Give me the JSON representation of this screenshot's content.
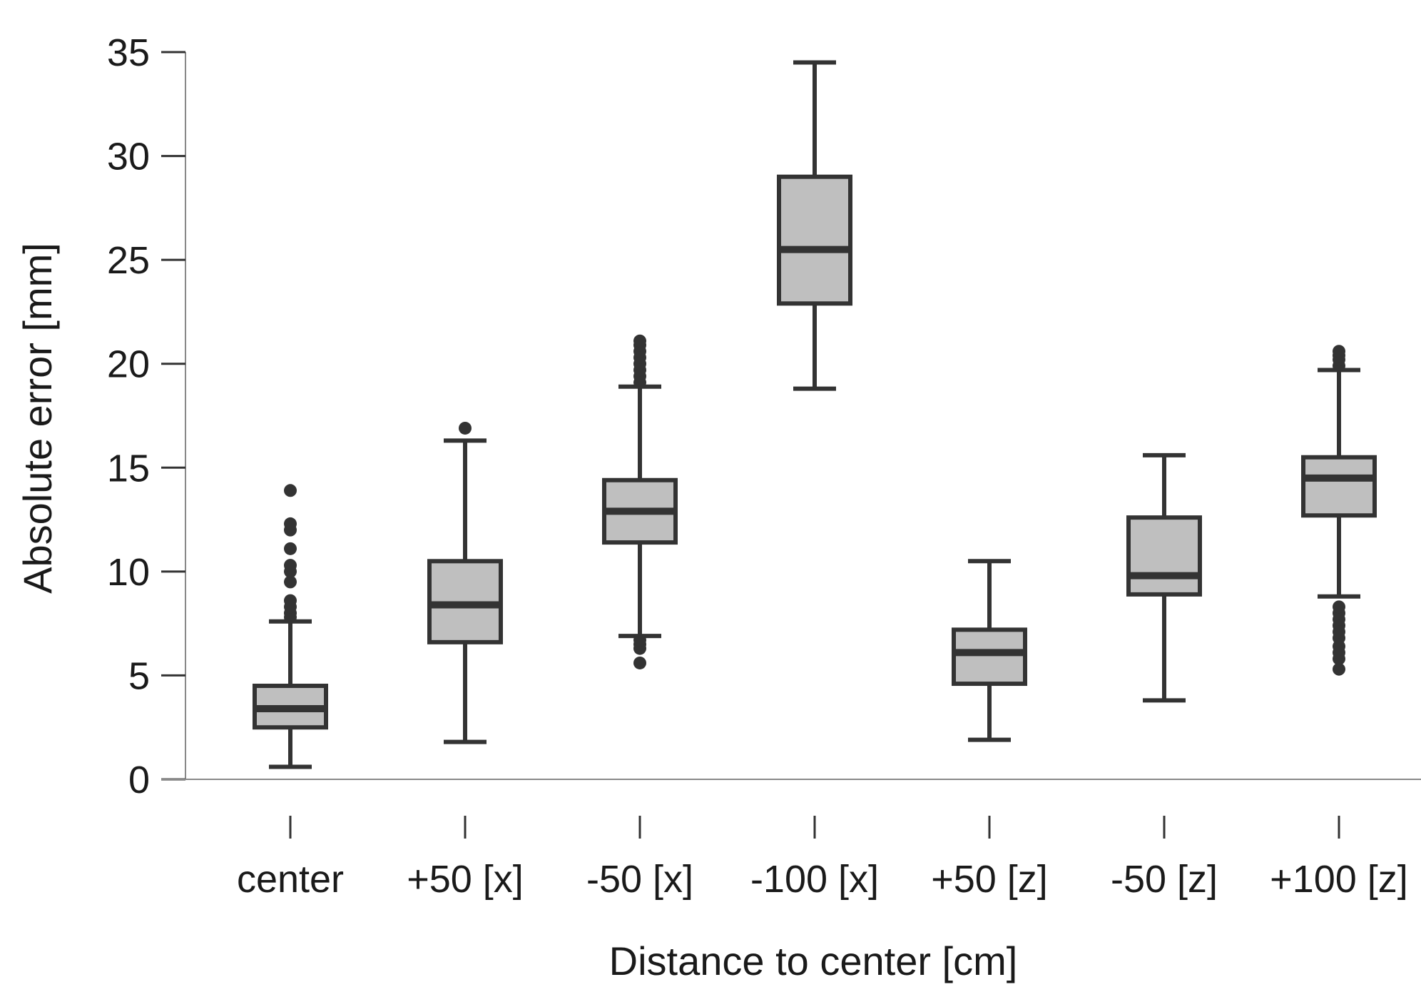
{
  "chart_data": {
    "type": "boxplot",
    "title": "",
    "xlabel": "Distance to center [cm]",
    "ylabel": "Absolute error [mm]",
    "ylim": [
      0,
      35
    ],
    "yticks": [
      0,
      5,
      10,
      15,
      20,
      25,
      30,
      35
    ],
    "grid": false,
    "colors": {
      "box_fill": "#bfbfbf",
      "box_stroke": "#333333",
      "axis": "#888888"
    },
    "categories": [
      "center",
      "+50 [x]",
      "-50 [x]",
      "-100 [x]",
      "+50 [z]",
      "-50 [z]",
      "+100 [z]"
    ],
    "boxes": [
      {
        "label": "center",
        "whisker_low": 0.6,
        "q1": 2.5,
        "median": 3.4,
        "q3": 4.5,
        "whisker_high": 7.6,
        "outliers": [
          7.8,
          8.0,
          8.3,
          8.6,
          9.5,
          10.0,
          10.3,
          11.1,
          12.0,
          12.3,
          13.9
        ]
      },
      {
        "label": "+50 [x]",
        "whisker_low": 1.8,
        "q1": 6.6,
        "median": 8.4,
        "q3": 10.5,
        "whisker_high": 16.3,
        "outliers": [
          16.9
        ]
      },
      {
        "label": "-50 [x]",
        "whisker_low": 6.9,
        "q1": 11.4,
        "median": 12.9,
        "q3": 14.4,
        "whisker_high": 18.9,
        "outliers": [
          5.6,
          6.3,
          6.5,
          6.7,
          19.1,
          19.4,
          19.7,
          20.0,
          20.3,
          20.6,
          20.9,
          21.1
        ]
      },
      {
        "label": "-100 [x]",
        "whisker_low": 18.8,
        "q1": 22.9,
        "median": 25.5,
        "q3": 29.0,
        "whisker_high": 34.5,
        "outliers": []
      },
      {
        "label": "+50 [z]",
        "whisker_low": 1.9,
        "q1": 4.6,
        "median": 6.1,
        "q3": 7.2,
        "whisker_high": 10.5,
        "outliers": []
      },
      {
        "label": "-50 [z]",
        "whisker_low": 3.8,
        "q1": 8.9,
        "median": 9.8,
        "q3": 12.6,
        "whisker_high": 15.6,
        "outliers": []
      },
      {
        "label": "+100 [z]",
        "whisker_low": 8.8,
        "q1": 12.7,
        "median": 14.5,
        "q3": 15.5,
        "whisker_high": 19.7,
        "outliers": [
          5.3,
          5.8,
          6.1,
          6.4,
          6.8,
          7.1,
          7.4,
          7.7,
          8.0,
          8.3,
          19.9,
          20.2,
          20.4,
          20.6
        ]
      }
    ]
  }
}
